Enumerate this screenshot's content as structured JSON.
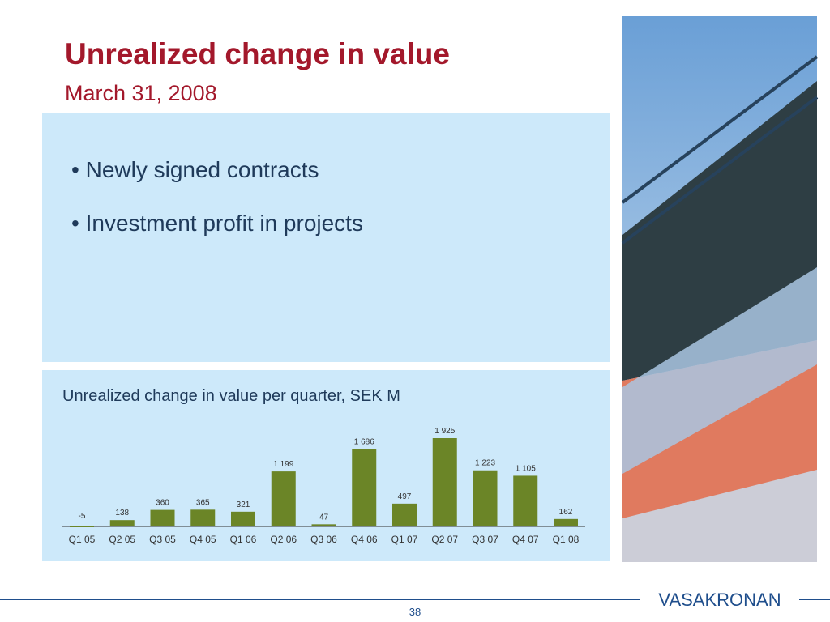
{
  "header": {
    "title": "Unrealized change in value",
    "subtitle": "March 31, 2008"
  },
  "bullets": [
    "Newly signed contracts",
    "Investment profit in projects"
  ],
  "chart_data": {
    "type": "bar",
    "title": "Unrealized change in value per quarter, SEK M",
    "categories": [
      "Q1 05",
      "Q2 05",
      "Q3 05",
      "Q4 05",
      "Q1 06",
      "Q2 06",
      "Q3 06",
      "Q4 06",
      "Q1 07",
      "Q2 07",
      "Q3 07",
      "Q4 07",
      "Q1 08"
    ],
    "values": [
      -5,
      138,
      360,
      365,
      321,
      1199,
      47,
      1686,
      497,
      1925,
      1223,
      1105,
      162
    ],
    "value_labels": [
      "-5",
      "138",
      "360",
      "365",
      "321",
      "1 199",
      "47",
      "1 686",
      "497",
      "1 925",
      "1 223",
      "1 105",
      "162"
    ],
    "color": "#6b8527"
  },
  "footer": {
    "logo": "VASAKRONAN",
    "page": "38"
  }
}
